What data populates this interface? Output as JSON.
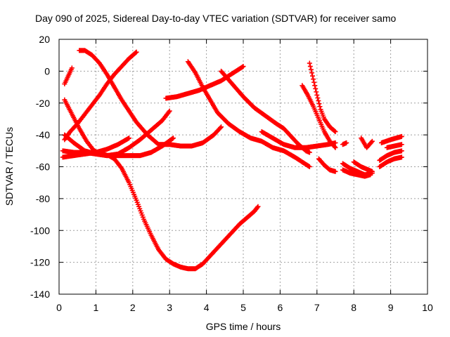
{
  "chart_data": {
    "type": "scatter",
    "title": "Day 090 of 2025, Sidereal Day-to-day VTEC variation (SDTVAR) for receiver samo",
    "xlabel": "GPS time / hours",
    "ylabel": "SDTVAR / TECUs",
    "xlim": [
      0,
      10
    ],
    "ylim": [
      -140,
      20
    ],
    "xticks": [
      "0",
      "1",
      "2",
      "3",
      "4",
      "5",
      "6",
      "7",
      "8",
      "9",
      "10"
    ],
    "yticks": [
      "-140",
      "-120",
      "-100",
      "-80",
      "-60",
      "-40",
      "-20",
      "0",
      "20"
    ],
    "grid": true,
    "marker": "plus",
    "color": "#ff0000",
    "series": [
      {
        "points": [
          [
            0.15,
            -8
          ],
          [
            0.25,
            -3
          ],
          [
            0.35,
            2
          ]
        ]
      },
      {
        "points": [
          [
            0.55,
            13
          ],
          [
            0.7,
            13
          ],
          [
            0.9,
            10
          ],
          [
            1.1,
            5
          ],
          [
            1.3,
            -2
          ],
          [
            1.5,
            -10
          ],
          [
            1.7,
            -18
          ],
          [
            1.9,
            -25
          ],
          [
            2.1,
            -32
          ],
          [
            2.4,
            -40
          ],
          [
            2.7,
            -46
          ],
          [
            3.0,
            -46
          ],
          [
            3.3,
            -47
          ],
          [
            3.6,
            -47
          ],
          [
            3.9,
            -45
          ],
          [
            4.2,
            -40
          ],
          [
            4.4,
            -35
          ]
        ]
      },
      {
        "points": [
          [
            0.15,
            -43
          ],
          [
            0.3,
            -38
          ],
          [
            0.5,
            -33
          ],
          [
            0.7,
            -27
          ],
          [
            0.9,
            -21
          ],
          [
            1.1,
            -15
          ],
          [
            1.3,
            -8
          ],
          [
            1.5,
            -2
          ],
          [
            1.7,
            3
          ],
          [
            1.9,
            8
          ],
          [
            2.1,
            12
          ]
        ]
      },
      {
        "points": [
          [
            0.15,
            -18
          ],
          [
            0.35,
            -27
          ],
          [
            0.55,
            -36
          ],
          [
            0.75,
            -44
          ],
          [
            0.95,
            -50
          ],
          [
            1.15,
            -52
          ],
          [
            1.35,
            -53
          ],
          [
            1.5,
            -55
          ],
          [
            1.7,
            -61
          ],
          [
            1.9,
            -70
          ],
          [
            2.1,
            -81
          ],
          [
            2.3,
            -93
          ],
          [
            2.5,
            -103
          ],
          [
            2.7,
            -112
          ],
          [
            2.9,
            -118
          ],
          [
            3.1,
            -121
          ],
          [
            3.3,
            -123
          ],
          [
            3.5,
            -124
          ],
          [
            3.7,
            -124
          ],
          [
            3.9,
            -121
          ],
          [
            4.1,
            -116
          ],
          [
            4.3,
            -111
          ],
          [
            4.5,
            -106
          ],
          [
            4.7,
            -101
          ],
          [
            4.9,
            -96
          ],
          [
            5.1,
            -92
          ],
          [
            5.3,
            -88
          ],
          [
            5.4,
            -85
          ]
        ]
      },
      {
        "points": [
          [
            0.15,
            -40
          ],
          [
            0.4,
            -45
          ],
          [
            0.7,
            -50
          ],
          [
            1.0,
            -52
          ],
          [
            1.3,
            -53
          ],
          [
            1.6,
            -52
          ],
          [
            1.9,
            -48
          ],
          [
            2.2,
            -43
          ],
          [
            2.5,
            -37
          ],
          [
            2.8,
            -31
          ],
          [
            3.0,
            -25
          ]
        ]
      },
      {
        "points": [
          [
            0.1,
            -50
          ],
          [
            0.4,
            -51
          ],
          [
            0.7,
            -51
          ],
          [
            1.0,
            -52
          ],
          [
            1.3,
            -53
          ],
          [
            1.6,
            -53
          ],
          [
            1.9,
            -53
          ],
          [
            2.2,
            -53
          ],
          [
            2.5,
            -51
          ],
          [
            2.8,
            -47
          ],
          [
            3.1,
            -42
          ]
        ]
      },
      {
        "points": [
          [
            0.1,
            -54
          ],
          [
            0.4,
            -53
          ],
          [
            0.7,
            -52
          ],
          [
            1.0,
            -51
          ],
          [
            1.3,
            -49
          ],
          [
            1.6,
            -46
          ],
          [
            1.9,
            -42
          ]
        ]
      },
      {
        "points": [
          [
            2.9,
            -17
          ],
          [
            3.2,
            -16
          ],
          [
            3.5,
            -14
          ],
          [
            3.8,
            -12
          ],
          [
            4.1,
            -9
          ],
          [
            4.4,
            -6
          ],
          [
            4.6,
            -3
          ],
          [
            4.8,
            0
          ],
          [
            5.0,
            3
          ]
        ]
      },
      {
        "points": [
          [
            3.5,
            6
          ],
          [
            3.7,
            -1
          ],
          [
            3.9,
            -10
          ],
          [
            4.1,
            -18
          ],
          [
            4.3,
            -26
          ],
          [
            4.6,
            -33
          ],
          [
            4.9,
            -38
          ],
          [
            5.2,
            -42
          ],
          [
            5.5,
            -44
          ],
          [
            5.8,
            -48
          ],
          [
            6.1,
            -50
          ],
          [
            6.4,
            -54
          ],
          [
            6.6,
            -57
          ],
          [
            6.8,
            -60
          ]
        ]
      },
      {
        "points": [
          [
            4.4,
            0
          ],
          [
            4.7,
            -8
          ],
          [
            5.0,
            -16
          ],
          [
            5.3,
            -23
          ],
          [
            5.6,
            -28
          ],
          [
            5.9,
            -33
          ],
          [
            6.1,
            -36
          ],
          [
            6.3,
            -41
          ],
          [
            6.5,
            -46
          ],
          [
            6.7,
            -50
          ],
          [
            6.8,
            -51
          ]
        ]
      },
      {
        "points": [
          [
            5.5,
            -38
          ],
          [
            5.8,
            -42
          ],
          [
            6.1,
            -46
          ],
          [
            6.4,
            -48
          ],
          [
            6.7,
            -48
          ],
          [
            7.0,
            -47
          ],
          [
            7.3,
            -46
          ],
          [
            7.5,
            -45
          ]
        ]
      },
      {
        "points": [
          [
            6.8,
            5
          ],
          [
            6.9,
            -5
          ],
          [
            7.0,
            -15
          ],
          [
            7.1,
            -24
          ],
          [
            7.2,
            -30
          ],
          [
            7.35,
            -35
          ],
          [
            7.5,
            -38
          ]
        ]
      },
      {
        "points": [
          [
            6.6,
            -9
          ],
          [
            6.75,
            -15
          ],
          [
            6.9,
            -22
          ],
          [
            7.05,
            -30
          ],
          [
            7.2,
            -38
          ],
          [
            7.35,
            -44
          ],
          [
            7.5,
            -48
          ]
        ]
      },
      {
        "points": [
          [
            7.05,
            -55
          ],
          [
            7.2,
            -59
          ],
          [
            7.35,
            -62
          ],
          [
            7.5,
            -63
          ]
        ]
      },
      {
        "points": [
          [
            7.7,
            -46
          ],
          [
            7.8,
            -45
          ]
        ]
      },
      {
        "points": [
          [
            7.7,
            -58
          ],
          [
            7.9,
            -61
          ],
          [
            8.1,
            -63
          ],
          [
            8.3,
            -65
          ],
          [
            8.5,
            -64
          ]
        ]
      },
      {
        "points": [
          [
            7.7,
            -62
          ],
          [
            7.9,
            -64
          ],
          [
            8.1,
            -65
          ],
          [
            8.3,
            -66
          ],
          [
            8.45,
            -65
          ]
        ]
      },
      {
        "points": [
          [
            8.0,
            -57
          ],
          [
            8.2,
            -60
          ],
          [
            8.4,
            -62
          ],
          [
            8.5,
            -63
          ]
        ]
      },
      {
        "points": [
          [
            8.2,
            -42
          ],
          [
            8.35,
            -48
          ],
          [
            8.5,
            -44
          ]
        ]
      },
      {
        "points": [
          [
            8.7,
            -60
          ],
          [
            8.9,
            -57
          ],
          [
            9.1,
            -55
          ],
          [
            9.3,
            -54
          ]
        ]
      },
      {
        "points": [
          [
            8.7,
            -56
          ],
          [
            8.9,
            -53
          ],
          [
            9.1,
            -51
          ],
          [
            9.3,
            -50
          ]
        ]
      },
      {
        "points": [
          [
            8.75,
            -45
          ],
          [
            9.0,
            -43
          ],
          [
            9.3,
            -41
          ]
        ]
      },
      {
        "points": [
          [
            8.9,
            -48
          ],
          [
            9.1,
            -47
          ],
          [
            9.3,
            -46
          ]
        ]
      }
    ]
  }
}
